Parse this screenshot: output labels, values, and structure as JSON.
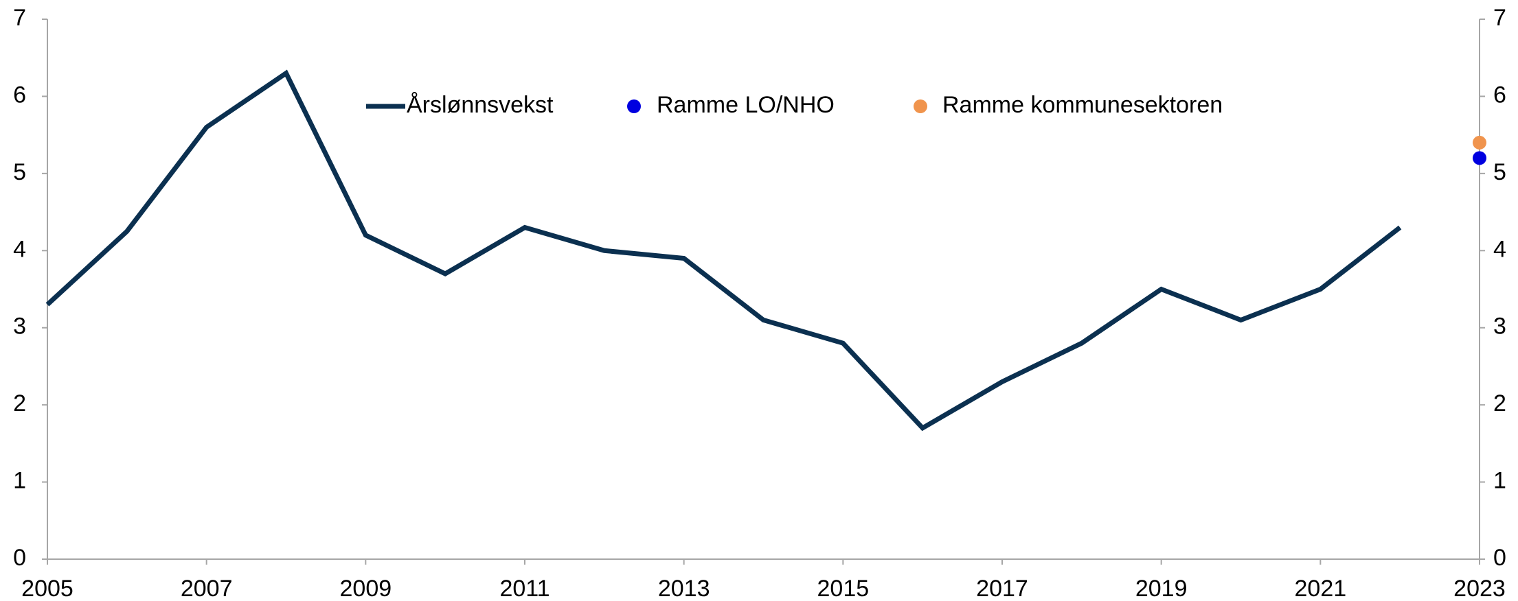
{
  "chart_data": {
    "type": "line",
    "x": [
      2005,
      2006,
      2007,
      2008,
      2009,
      2010,
      2011,
      2012,
      2013,
      2014,
      2015,
      2016,
      2017,
      2018,
      2019,
      2020,
      2021,
      2022,
      2023
    ],
    "series": [
      {
        "name": "Årslønnsvekst",
        "type": "line",
        "color": "#0b3050",
        "values": [
          3.3,
          4.25,
          5.6,
          6.3,
          4.2,
          3.7,
          4.3,
          4.0,
          3.9,
          3.1,
          2.8,
          1.7,
          2.3,
          2.8,
          3.5,
          3.1,
          3.5,
          4.3,
          null
        ]
      },
      {
        "name": "Ramme LO/NHO",
        "type": "scatter",
        "color": "#0000e0",
        "values": [
          null,
          null,
          null,
          null,
          null,
          null,
          null,
          null,
          null,
          null,
          null,
          null,
          null,
          null,
          null,
          null,
          null,
          null,
          5.2
        ]
      },
      {
        "name": "Ramme kommunesektoren",
        "type": "scatter",
        "color": "#f0944d",
        "values": [
          null,
          null,
          null,
          null,
          null,
          null,
          null,
          null,
          null,
          null,
          null,
          null,
          null,
          null,
          null,
          null,
          null,
          null,
          5.4
        ]
      }
    ],
    "xlim": [
      2005,
      2023
    ],
    "xticks": [
      2005,
      2007,
      2009,
      2011,
      2013,
      2015,
      2017,
      2019,
      2021,
      2023
    ],
    "ylim": [
      0,
      7
    ],
    "yticks": [
      0,
      1,
      2,
      3,
      4,
      5,
      6,
      7
    ],
    "y2lim": [
      0,
      7
    ],
    "y2ticks": [
      0,
      1,
      2,
      3,
      4,
      5,
      6,
      7
    ],
    "grid": false,
    "legend": "top"
  }
}
